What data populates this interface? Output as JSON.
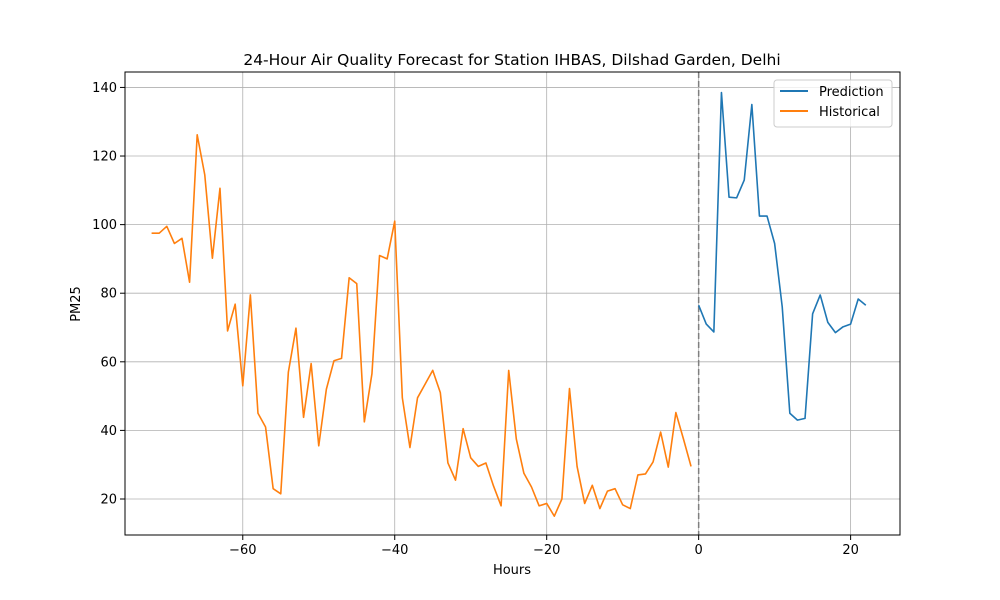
{
  "chart_data": {
    "type": "line",
    "title": "24-Hour Air Quality Forecast for Station IHBAS, Dilshad Garden, Delhi",
    "xlabel": "Hours",
    "ylabel": "PM25",
    "xlim": [
      -75.5,
      26.5
    ],
    "ylim": [
      9.5,
      144.5
    ],
    "xticks": [
      -60,
      -40,
      -20,
      0,
      20
    ],
    "xtick_labels": [
      "−60",
      "−40",
      "−20",
      "0",
      "20"
    ],
    "yticks": [
      20,
      40,
      60,
      80,
      100,
      120,
      140
    ],
    "ytick_labels": [
      "20",
      "40",
      "60",
      "80",
      "100",
      "120",
      "140"
    ],
    "grid": true,
    "legend_position": "top-right",
    "vline": {
      "x": 0,
      "style": "dashed",
      "color": "#7f7f7f"
    },
    "series": [
      {
        "name": "Prediction",
        "color": "#1f77b4",
        "x": [
          0,
          1,
          2,
          3,
          4,
          5,
          6,
          7,
          8,
          9,
          10,
          11,
          12,
          13,
          14,
          15,
          16,
          17,
          18,
          19,
          20,
          21,
          22
        ],
        "values": [
          76.5,
          71,
          68.7,
          138.5,
          108,
          107.8,
          113,
          135,
          102.5,
          102.5,
          94.5,
          76,
          45,
          43,
          43.5,
          74,
          79.5,
          71.5,
          68.5,
          70.2,
          71,
          78.3,
          76.5
        ]
      },
      {
        "name": "Historical",
        "color": "#ff7f0e",
        "x": [
          -72,
          -71,
          -70,
          -69,
          -68,
          -67,
          -66,
          -65,
          -64,
          -63,
          -62,
          -61,
          -60,
          -59,
          -58,
          -57,
          -56,
          -55,
          -54,
          -53,
          -52,
          -51,
          -50,
          -49,
          -48,
          -47,
          -46,
          -45,
          -44,
          -43,
          -42,
          -41,
          -40,
          -39,
          -38,
          -37,
          -36,
          -35,
          -34,
          -33,
          -32,
          -31,
          -30,
          -29,
          -28,
          -27,
          -26,
          -25,
          -24,
          -23,
          -22,
          -21,
          -20,
          -19,
          -18,
          -17,
          -16,
          -15,
          -14,
          -13,
          -12,
          -11,
          -10,
          -9,
          -8,
          -7,
          -6,
          -5,
          -4,
          -3,
          -2,
          -1
        ],
        "values": [
          97.5,
          97.5,
          99.5,
          94.5,
          96,
          83.2,
          126.2,
          114.5,
          90.2,
          110.6,
          69,
          76.8,
          53,
          79.5,
          45,
          41,
          23,
          21.5,
          57,
          69.8,
          43.8,
          59.5,
          35.5,
          52,
          60.3,
          61,
          84.5,
          82.8,
          42.5,
          56.5,
          91,
          90,
          101,
          49.5,
          35,
          49.5,
          53.5,
          57.5,
          51,
          30.5,
          25.5,
          40.5,
          32,
          29.5,
          30.5,
          23.8,
          18,
          57.5,
          37.5,
          27.5,
          23.5,
          18,
          18.7,
          15,
          20,
          52.2,
          29.5,
          18.7,
          24,
          17.2,
          22.3,
          23,
          18.3,
          17.2,
          27,
          27.3,
          30.8,
          39.5,
          29.3,
          45.2,
          37.5,
          29.5
        ]
      }
    ]
  }
}
